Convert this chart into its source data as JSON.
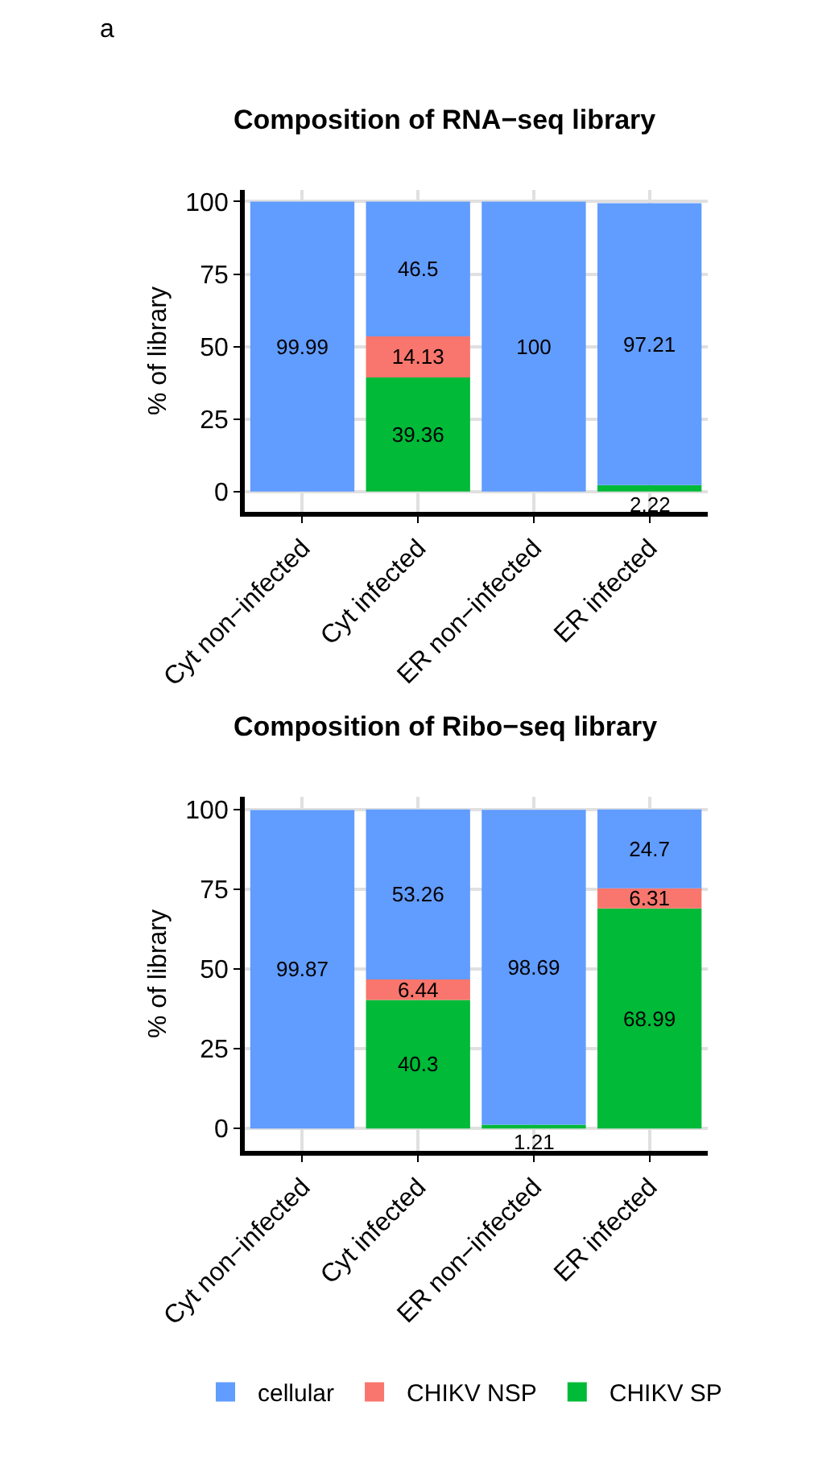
{
  "chart_data": [
    {
      "type": "bar",
      "stacked": true,
      "title": "Composition of RNA−seq library",
      "ylabel": "% of library",
      "annotations": [
        "a"
      ],
      "categories": [
        "Cyt non−infected",
        "Cyt infected",
        "ER non−infected",
        "ER infected"
      ],
      "series": [
        {
          "name": "CHIKV SP",
          "color": "#00ba38",
          "values": [
            null,
            39.36,
            null,
            2.22
          ],
          "value_labels": [
            null,
            "39.36",
            null,
            "2.22"
          ]
        },
        {
          "name": "CHIKV NSP",
          "color": "#f8766d",
          "values": [
            null,
            14.13,
            null,
            null
          ],
          "value_labels": [
            null,
            "14.13",
            null,
            null
          ]
        },
        {
          "name": "cellular",
          "color": "#619cff",
          "values": [
            99.99,
            46.5,
            100,
            97.21
          ],
          "value_labels": [
            "99.99",
            "46.5",
            "100",
            "97.21"
          ]
        }
      ],
      "ylim": [
        -7,
        104
      ],
      "yticks": [
        0,
        25,
        50,
        75,
        100
      ],
      "grid": true,
      "legend": "bottom"
    },
    {
      "type": "bar",
      "stacked": true,
      "title": "Composition of Ribo−seq library",
      "ylabel": "% of library",
      "categories": [
        "Cyt non−infected",
        "Cyt infected",
        "ER non−infected",
        "ER infected"
      ],
      "series": [
        {
          "name": "CHIKV SP",
          "color": "#00ba38",
          "values": [
            null,
            40.3,
            1.21,
            68.99
          ],
          "value_labels": [
            null,
            "40.3",
            "1.21",
            "68.99"
          ]
        },
        {
          "name": "CHIKV NSP",
          "color": "#f8766d",
          "values": [
            null,
            6.44,
            null,
            6.31
          ],
          "value_labels": [
            null,
            "6.44",
            null,
            "6.31"
          ]
        },
        {
          "name": "cellular",
          "color": "#619cff",
          "values": [
            99.87,
            53.26,
            98.69,
            24.7
          ],
          "value_labels": [
            "99.87",
            "53.26",
            "98.69",
            "24.7"
          ]
        }
      ],
      "ylim": [
        -7,
        104
      ],
      "yticks": [
        0,
        25,
        50,
        75,
        100
      ],
      "grid": true,
      "legend": "bottom"
    }
  ]
}
